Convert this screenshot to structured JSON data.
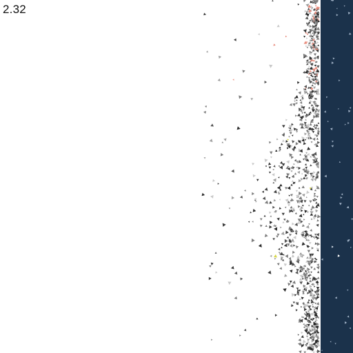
{
  "readout": {
    "value": "2.32"
  },
  "colors": {
    "background": "#ffffff",
    "panel": "#1b324b",
    "particle_dark": "#2a2a2a",
    "particle_mid": "#7d7d7d",
    "particle_light": "#c9c9c9",
    "accent_salmon": "#e88a7a",
    "accent_yellow": "#d8d84a",
    "panel_particle": "#9fb0c4",
    "panel_highlight": "#ffffff"
  },
  "icons": {
    "particle": "triangle-particle-icon"
  }
}
